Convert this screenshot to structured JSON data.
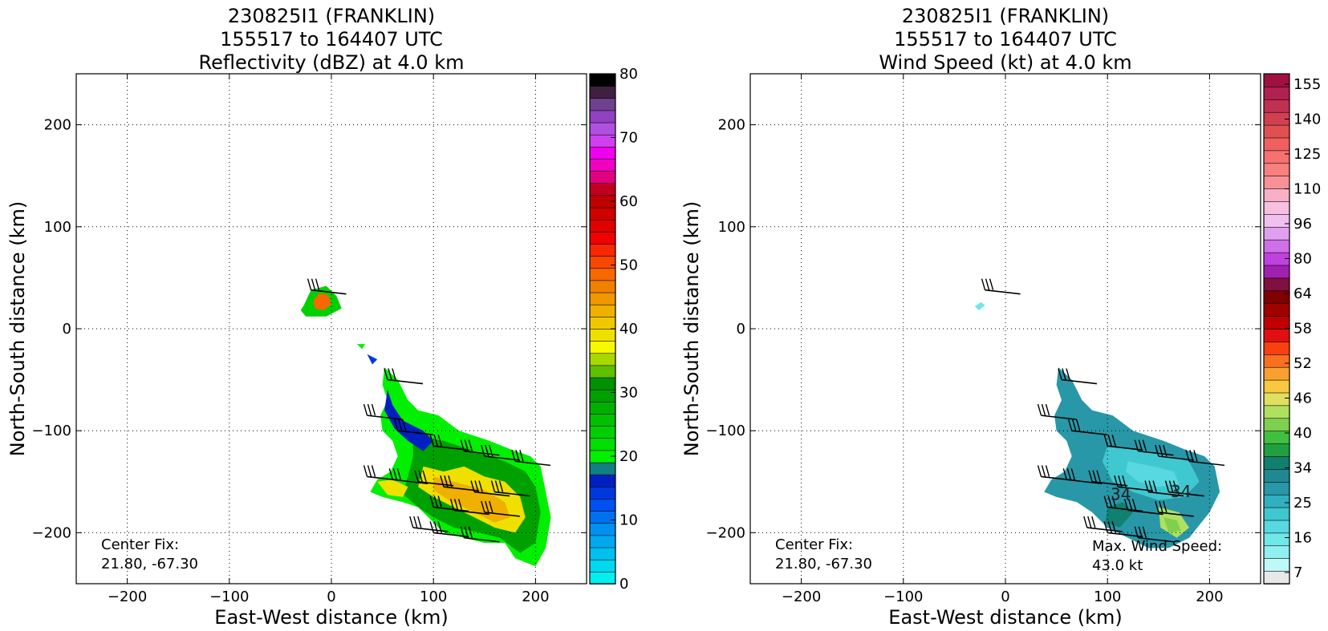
{
  "chart_data": [
    {
      "type": "heatmap",
      "title_lines": [
        "230825I1 (FRANKLIN)",
        "155517 to 164407 UTC",
        "Reflectivity (dBZ) at 4.0 km"
      ],
      "xlabel": "East-West distance (km)",
      "ylabel": "North-South distance (km)",
      "xlim": [
        -250,
        250
      ],
      "ylim": [
        -250,
        250
      ],
      "x_ticks": [
        -200,
        -100,
        0,
        100,
        200
      ],
      "y_ticks": [
        200,
        100,
        0,
        -100,
        -200
      ],
      "grid": true,
      "annotations": [
        "Center Fix:",
        "21.80, -67.30"
      ],
      "colorbar": {
        "min": 0,
        "max": 80,
        "tick_values": [
          0,
          10,
          20,
          30,
          40,
          50,
          60,
          70,
          80
        ],
        "colors": [
          "#00f0f0",
          "#00d8f0",
          "#00c0f0",
          "#00a8f0",
          "#0090f0",
          "#0070f0",
          "#0050f0",
          "#0038e0",
          "#0020c0",
          "#108080",
          "#00f000",
          "#00e000",
          "#00d000",
          "#00c000",
          "#00b000",
          "#00a000",
          "#009000",
          "#60c000",
          "#a8d800",
          "#f8f800",
          "#f0e000",
          "#f0c800",
          "#f0b000",
          "#f09800",
          "#f08000",
          "#f86800",
          "#f84800",
          "#f82800",
          "#f00000",
          "#e00000",
          "#d00000",
          "#c00000",
          "#c00020",
          "#e00080",
          "#f000c0",
          "#f000f0",
          "#d040f0",
          "#b050e0",
          "#9040c0",
          "#704090",
          "#402040",
          "#000000"
        ]
      },
      "data_regions": [
        {
          "level": 12,
          "points": [
            [
              -27,
              23
            ],
            [
              -20,
              38
            ],
            [
              -5,
              42
            ],
            [
              5,
              32
            ],
            [
              10,
              20
            ],
            [
              -5,
              12
            ],
            [
              -25,
              12
            ],
            [
              -30,
              18
            ]
          ]
        },
        {
          "level": 25,
          "points": [
            [
              -18,
              27
            ],
            [
              -12,
              35
            ],
            [
              -3,
              33
            ],
            [
              0,
              24
            ],
            [
              -8,
              18
            ],
            [
              -16,
              20
            ]
          ]
        },
        {
          "level": 10,
          "points": [
            [
              52,
              -38
            ],
            [
              65,
              -50
            ],
            [
              75,
              -70
            ],
            [
              85,
              -80
            ],
            [
              105,
              -85
            ],
            [
              125,
              -100
            ],
            [
              155,
              -110
            ],
            [
              175,
              -118
            ],
            [
              195,
              -125
            ],
            [
              205,
              -135
            ],
            [
              210,
              -160
            ],
            [
              215,
              -185
            ],
            [
              210,
              -215
            ],
            [
              200,
              -233
            ],
            [
              180,
              -225
            ],
            [
              170,
              -210
            ],
            [
              150,
              -210
            ],
            [
              130,
              -205
            ],
            [
              110,
              -200
            ],
            [
              85,
              -175
            ],
            [
              70,
              -170
            ],
            [
              50,
              -165
            ],
            [
              38,
              -160
            ],
            [
              45,
              -148
            ],
            [
              58,
              -140
            ],
            [
              65,
              -125
            ],
            [
              60,
              -110
            ],
            [
              50,
              -100
            ],
            [
              48,
              -85
            ],
            [
              55,
              -70
            ],
            [
              50,
              -55
            ]
          ]
        },
        {
          "level": 15,
          "points": [
            [
              80,
              -105
            ],
            [
              110,
              -110
            ],
            [
              140,
              -120
            ],
            [
              170,
              -130
            ],
            [
              190,
              -140
            ],
            [
              200,
              -155
            ],
            [
              205,
              -180
            ],
            [
              200,
              -210
            ],
            [
              185,
              -220
            ],
            [
              165,
              -205
            ],
            [
              145,
              -200
            ],
            [
              120,
              -195
            ],
            [
              100,
              -185
            ],
            [
              85,
              -175
            ],
            [
              70,
              -162
            ],
            [
              75,
              -145
            ],
            [
              80,
              -125
            ]
          ]
        },
        {
          "level": 20,
          "points": [
            [
              90,
              -135
            ],
            [
              110,
              -140
            ],
            [
              130,
              -135
            ],
            [
              150,
              -145
            ],
            [
              170,
              -150
            ],
            [
              185,
              -165
            ],
            [
              190,
              -185
            ],
            [
              180,
              -200
            ],
            [
              160,
              -195
            ],
            [
              140,
              -185
            ],
            [
              120,
              -175
            ],
            [
              100,
              -165
            ],
            [
              85,
              -155
            ]
          ]
        },
        {
          "level": 22,
          "points": [
            [
              100,
              -145
            ],
            [
              120,
              -150
            ],
            [
              150,
              -158
            ],
            [
              170,
              -170
            ],
            [
              175,
              -185
            ],
            [
              160,
              -190
            ],
            [
              140,
              -180
            ],
            [
              115,
              -168
            ],
            [
              100,
              -158
            ]
          ]
        },
        {
          "level": 8,
          "points": [
            [
              55,
              -60
            ],
            [
              60,
              -75
            ],
            [
              70,
              -90
            ],
            [
              90,
              -100
            ],
            [
              100,
              -110
            ],
            [
              90,
              -120
            ],
            [
              75,
              -110
            ],
            [
              62,
              -98
            ],
            [
              52,
              -80
            ]
          ]
        },
        {
          "level": 20,
          "points": [
            [
              45,
              -150
            ],
            [
              60,
              -148
            ],
            [
              75,
              -155
            ],
            [
              70,
              -165
            ],
            [
              55,
              -163
            ]
          ]
        },
        {
          "level": 10,
          "points": [
            [
              25,
              -15
            ],
            [
              30,
              -20
            ],
            [
              33,
              -15
            ]
          ]
        },
        {
          "level": 7,
          "points": [
            [
              35,
              -25
            ],
            [
              40,
              -35
            ],
            [
              45,
              -30
            ]
          ]
        }
      ],
      "barbs": [
        [
          -20,
          38
        ],
        [
          55,
          -50
        ],
        [
          35,
          -85
        ],
        [
          65,
          -100
        ],
        [
          100,
          -115
        ],
        [
          130,
          -120
        ],
        [
          150,
          -125
        ],
        [
          180,
          -130
        ],
        [
          35,
          -145
        ],
        [
          60,
          -148
        ],
        [
          85,
          -150
        ],
        [
          110,
          -155
        ],
        [
          140,
          -160
        ],
        [
          160,
          -160
        ],
        [
          100,
          -175
        ],
        [
          120,
          -178
        ],
        [
          150,
          -180
        ],
        [
          80,
          -195
        ],
        [
          100,
          -200
        ],
        [
          130,
          -205
        ]
      ]
    },
    {
      "type": "heatmap",
      "title_lines": [
        "230825I1 (FRANKLIN)",
        "155517 to 164407 UTC",
        "Wind Speed (kt) at 4.0 km"
      ],
      "xlabel": "East-West distance (km)",
      "ylabel": "North-South distance (km)",
      "xlim": [
        -250,
        250
      ],
      "ylim": [
        -250,
        250
      ],
      "x_ticks": [
        -200,
        -100,
        0,
        100,
        200
      ],
      "y_ticks": [
        200,
        100,
        0,
        -100,
        -200
      ],
      "grid": true,
      "annotations": [
        "Center Fix:",
        "21.80, -67.30",
        "Max. Wind Speed:",
        "43.0 kt"
      ],
      "contour_labels": [
        {
          "text": "34",
          "x": 113,
          "y": -168
        },
        {
          "text": "34",
          "x": 172,
          "y": -165
        }
      ],
      "colorbar": {
        "tick_labels": [
          "7",
          "16",
          "25",
          "34",
          "40",
          "46",
          "52",
          "58",
          "64",
          "80",
          "96",
          "110",
          "125",
          "140",
          "155"
        ],
        "colors": [
          "#e8e8e8",
          "#c0f8f8",
          "#90f0f0",
          "#70e8e8",
          "#58d8e0",
          "#40c8d0",
          "#30b0c0",
          "#2898a8",
          "#208890",
          "#108070",
          "#20a040",
          "#40c040",
          "#80d050",
          "#b0e060",
          "#e0e060",
          "#f8c840",
          "#f8a030",
          "#f87020",
          "#f84010",
          "#e01010",
          "#c00000",
          "#a00000",
          "#800000",
          "#801040",
          "#a020b0",
          "#c040e0",
          "#d070e8",
          "#e0a0f0",
          "#f0c0f0",
          "#f8c0e0",
          "#f8b0c8",
          "#f89098",
          "#f88080",
          "#f87070",
          "#f06060",
          "#e05050",
          "#d04050",
          "#c03050",
          "#b02050",
          "#a01040"
        ]
      },
      "data_regions": [
        {
          "level": 7,
          "points": [
            [
              52,
              -38
            ],
            [
              65,
              -50
            ],
            [
              75,
              -70
            ],
            [
              85,
              -80
            ],
            [
              105,
              -85
            ],
            [
              125,
              -100
            ],
            [
              155,
              -110
            ],
            [
              175,
              -118
            ],
            [
              195,
              -125
            ],
            [
              205,
              -135
            ],
            [
              210,
              -160
            ],
            [
              200,
              -180
            ],
            [
              180,
              -205
            ],
            [
              160,
              -215
            ],
            [
              140,
              -215
            ],
            [
              120,
              -205
            ],
            [
              100,
              -195
            ],
            [
              85,
              -180
            ],
            [
              70,
              -170
            ],
            [
              50,
              -165
            ],
            [
              38,
              -160
            ],
            [
              45,
              -148
            ],
            [
              58,
              -140
            ],
            [
              65,
              -125
            ],
            [
              60,
              -110
            ],
            [
              50,
              -100
            ],
            [
              48,
              -85
            ],
            [
              55,
              -70
            ],
            [
              50,
              -55
            ]
          ]
        },
        {
          "level": 5,
          "points": [
            [
              100,
              -115
            ],
            [
              130,
              -118
            ],
            [
              160,
              -125
            ],
            [
              180,
              -130
            ],
            [
              190,
              -150
            ],
            [
              175,
              -165
            ],
            [
              150,
              -168
            ],
            [
              125,
              -160
            ],
            [
              105,
              -150
            ],
            [
              95,
              -130
            ]
          ]
        },
        {
          "level": 4,
          "points": [
            [
              120,
              -130
            ],
            [
              145,
              -135
            ],
            [
              165,
              -140
            ],
            [
              170,
              -152
            ],
            [
              150,
              -155
            ],
            [
              130,
              -150
            ],
            [
              118,
              -140
            ]
          ]
        },
        {
          "level": 9,
          "points": [
            [
              100,
              -175
            ],
            [
              115,
              -170
            ],
            [
              125,
              -180
            ],
            [
              112,
              -195
            ],
            [
              98,
              -190
            ]
          ]
        },
        {
          "level": 13,
          "points": [
            [
              150,
              -175
            ],
            [
              170,
              -180
            ],
            [
              180,
              -195
            ],
            [
              168,
              -205
            ],
            [
              152,
              -195
            ]
          ]
        },
        {
          "level": 12,
          "points": [
            [
              155,
              -185
            ],
            [
              168,
              -188
            ],
            [
              172,
              -198
            ],
            [
              160,
              -200
            ]
          ]
        },
        {
          "level": 3,
          "points": [
            [
              -30,
              22
            ],
            [
              -24,
              26
            ],
            [
              -20,
              23
            ],
            [
              -26,
              18
            ]
          ]
        },
        {
          "level": 7,
          "points": [
            [
              45,
              -150
            ],
            [
              60,
              -148
            ],
            [
              72,
              -155
            ],
            [
              65,
              -162
            ],
            [
              50,
              -160
            ]
          ]
        }
      ],
      "barbs": [
        [
          -20,
          38
        ],
        [
          55,
          -50
        ],
        [
          35,
          -85
        ],
        [
          65,
          -100
        ],
        [
          100,
          -115
        ],
        [
          130,
          -120
        ],
        [
          150,
          -125
        ],
        [
          180,
          -130
        ],
        [
          35,
          -145
        ],
        [
          60,
          -148
        ],
        [
          85,
          -150
        ],
        [
          110,
          -155
        ],
        [
          140,
          -160
        ],
        [
          160,
          -160
        ],
        [
          100,
          -175
        ],
        [
          120,
          -178
        ],
        [
          150,
          -180
        ],
        [
          80,
          -195
        ],
        [
          100,
          -200
        ],
        [
          130,
          -205
        ]
      ]
    }
  ]
}
